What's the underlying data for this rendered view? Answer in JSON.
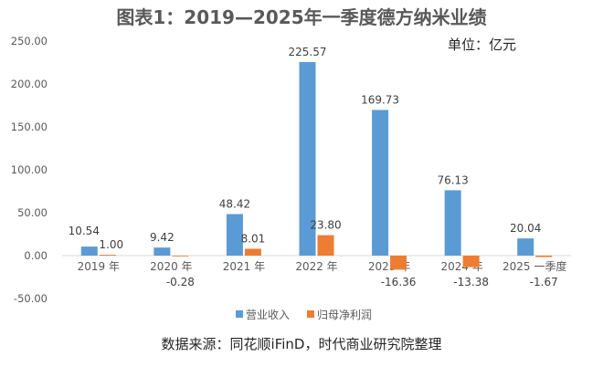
{
  "chart_data": {
    "type": "bar",
    "title": "图表1：2019—2025年一季度德方纳米业绩",
    "unit_note": "单位：亿元",
    "source_note": "数据来源：同花顺iFinD，时代商业研究院整理",
    "categories": [
      "2019 年",
      "2020 年",
      "2021 年",
      "2022 年",
      "2023 年",
      "2024 年",
      "2025 一季度"
    ],
    "series": [
      {
        "name": "营业收入",
        "color": "#5B9BD5",
        "values": [
          10.54,
          9.42,
          48.42,
          225.57,
          169.73,
          76.13,
          20.04
        ],
        "labels": [
          "10.54",
          "9.42",
          "48.42",
          "225.57",
          "169.73",
          "76.13",
          "20.04"
        ]
      },
      {
        "name": "归母净利润",
        "color": "#ED7D31",
        "values": [
          1.0,
          -0.28,
          8.01,
          23.8,
          -16.36,
          -13.38,
          -1.67
        ],
        "labels": [
          "1.00",
          "-0.28",
          "8.01",
          "23.80",
          "-16.36",
          "-13.38",
          "-1.67"
        ]
      }
    ],
    "yticks": [
      "250.00",
      "200.00",
      "150.00",
      "100.00",
      "50.00",
      "0.00",
      "-50.00"
    ],
    "ylim": [
      -50,
      250
    ],
    "grid": false,
    "legend": "bottom"
  }
}
